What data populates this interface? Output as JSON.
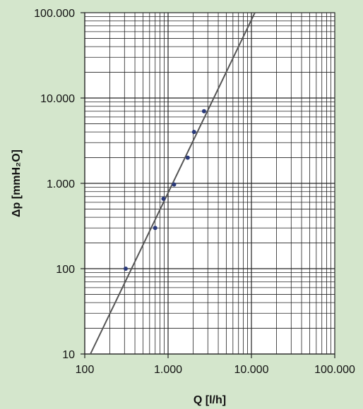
{
  "chart_data": {
    "type": "scatter",
    "x_scale": "log",
    "y_scale": "log",
    "xlim": [
      100,
      100000
    ],
    "ylim": [
      10,
      100000
    ],
    "x_ticks": [
      100,
      1000,
      10000,
      100000
    ],
    "x_tick_labels": [
      "100",
      "1.000",
      "10.000",
      "100.000"
    ],
    "y_ticks": [
      10,
      100,
      1000,
      10000,
      100000
    ],
    "y_tick_labels": [
      "10",
      "100",
      "1.000",
      "10.000",
      "100.000"
    ],
    "xlabel": "Q [l/h]",
    "ylabel": "Δp [mmH₂O]",
    "grid": true,
    "points": [
      {
        "x": 310,
        "y": 100
      },
      {
        "x": 700,
        "y": 300
      },
      {
        "x": 880,
        "y": 660
      },
      {
        "x": 1180,
        "y": 970
      },
      {
        "x": 1720,
        "y": 2000
      },
      {
        "x": 2050,
        "y": 4000
      },
      {
        "x": 2700,
        "y": 7000
      }
    ],
    "trend_line": {
      "x": [
        117,
        11000
      ],
      "y": [
        10,
        100000
      ]
    },
    "colors": {
      "background": "#d4e6cc",
      "plot_area": "#ffffff",
      "grid": "#222222",
      "points": "#2a3a7a",
      "line": "#555555"
    }
  }
}
